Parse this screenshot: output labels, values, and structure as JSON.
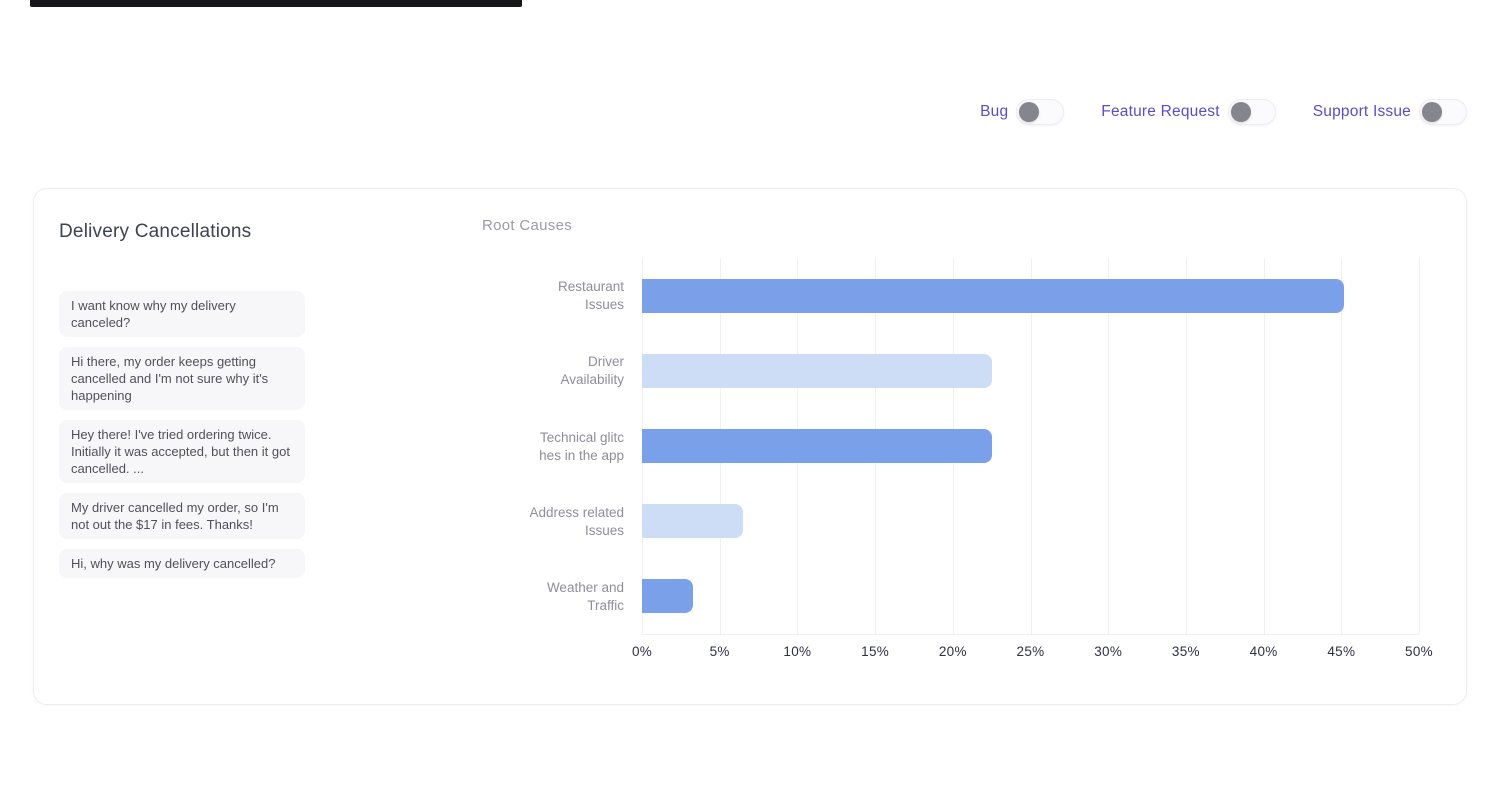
{
  "filters": {
    "items": [
      {
        "label": "Bug",
        "state": "off"
      },
      {
        "label": "Feature Request",
        "state": "off"
      },
      {
        "label": "Support Issue",
        "state": "off"
      }
    ]
  },
  "panel": {
    "title": "Delivery Cancellations",
    "messages": [
      "I want know why my delivery canceled?",
      "Hi there, my order keeps getting cancelled and I'm not sure why it's happening",
      "Hey there! I've tried ordering twice. Initially it was accepted, but then it got cancelled. ...",
      "My driver cancelled my order, so I'm not out the $17 in fees. Thanks!",
      "Hi, why was my delivery cancelled?"
    ]
  },
  "chart_data": {
    "type": "bar",
    "orientation": "horizontal",
    "title": "Root Causes",
    "categories": [
      "Restaurant Issues",
      "Driver Availability",
      "Technical glitches in the app",
      "Address related Issues",
      "Weather and Traffic"
    ],
    "category_lines": [
      "Restaurant\nIssues",
      "Driver\nAvailability",
      "Technical glitc\nhes in the app",
      "Address related\nIssues",
      "Weather and\nTraffic"
    ],
    "values": [
      45.2,
      22.5,
      22.5,
      6.5,
      3.3
    ],
    "unit": "%",
    "xlabel": "",
    "ylabel": "",
    "xlim": [
      0,
      50
    ],
    "ticks": [
      "0%",
      "5%",
      "10%",
      "15%",
      "20%",
      "25%",
      "30%",
      "35%",
      "40%",
      "45%",
      "50%"
    ],
    "bar_colors": [
      "#7ba0ea",
      "#cdddf6",
      "#7ba0ea",
      "#cdddf6",
      "#7ba0ea"
    ],
    "grid": "vertical",
    "legend": "none"
  },
  "colors": {
    "accent_purple": "#584ec8",
    "bar_dark": "#7ba0ea",
    "bar_light": "#cdddf6",
    "card_border": "#ededf0",
    "message_bg": "#f7f7f9"
  }
}
